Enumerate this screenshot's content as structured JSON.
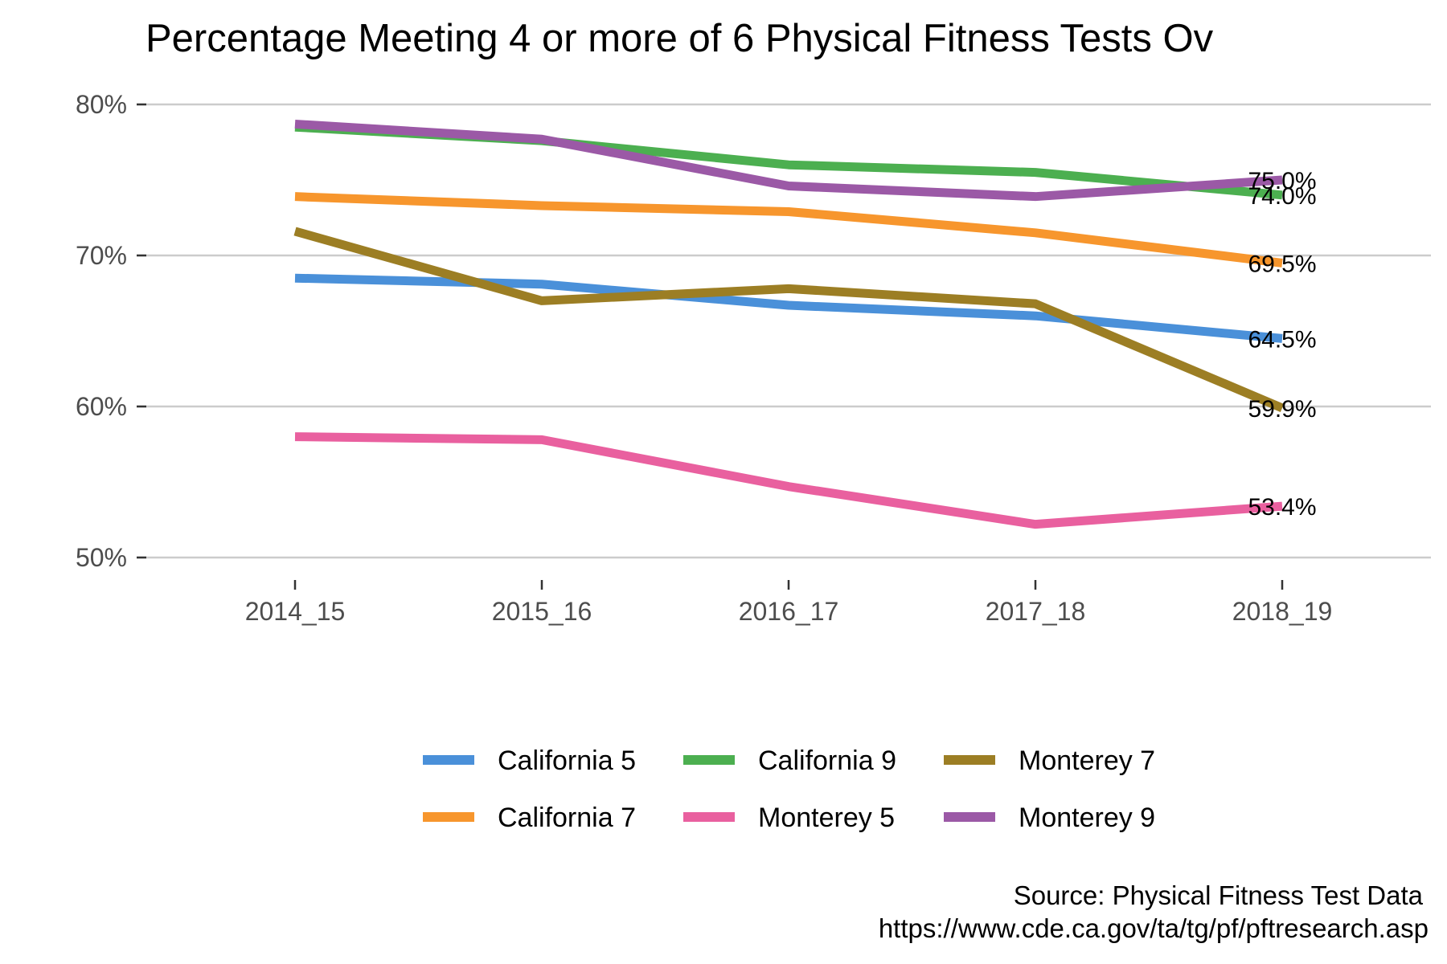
{
  "chart_data": {
    "type": "line",
    "title": "Percentage Meeting 4 or more of 6 Physical Fitness Tests Ov",
    "xlabel": "",
    "ylabel": "",
    "categories": [
      "2014_15",
      "2015_16",
      "2016_17",
      "2017_18",
      "2018_19"
    ],
    "ylim": [
      48,
      81
    ],
    "yticks": [
      50,
      60,
      70,
      80
    ],
    "ytick_labels": [
      "50%",
      "60%",
      "70%",
      "80%"
    ],
    "grid": "horizontal",
    "legend_position": "bottom",
    "series": [
      {
        "name": "California 5",
        "color": "#4a90d9",
        "values": [
          68.5,
          68.1,
          66.7,
          66.0,
          64.5
        ],
        "end_label": "64.5%"
      },
      {
        "name": "California 9",
        "color": "#4caf50",
        "values": [
          78.5,
          77.6,
          76.0,
          75.5,
          74.0
        ],
        "end_label": "74.0%"
      },
      {
        "name": "Monterey 7",
        "color": "#9c7e24",
        "values": [
          71.6,
          67.0,
          67.8,
          66.8,
          59.9
        ],
        "end_label": "59.9%"
      },
      {
        "name": "California 7",
        "color": "#f7962d",
        "values": [
          73.9,
          73.3,
          72.9,
          71.5,
          69.5
        ],
        "end_label": "69.5%"
      },
      {
        "name": "Monterey 5",
        "color": "#e9609f",
        "values": [
          58.0,
          57.8,
          54.7,
          52.2,
          53.4
        ],
        "end_label": "53.4%"
      },
      {
        "name": "Monterey 9",
        "color": "#9b59a6",
        "values": [
          78.7,
          77.7,
          74.6,
          73.9,
          75.0
        ],
        "end_label": "75.0%"
      }
    ]
  },
  "caption": {
    "line1": "Source: Physical Fitness Test Data",
    "line2": "https://www.cde.ca.gov/ta/tg/pf/pftresearch.asp"
  }
}
